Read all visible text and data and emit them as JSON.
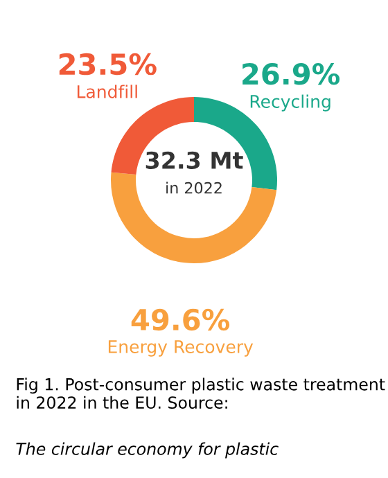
{
  "chart_data": {
    "type": "donut",
    "categories": [
      "Recycling",
      "Energy Recovery",
      "Landfill"
    ],
    "values": [
      26.9,
      49.6,
      23.5
    ],
    "value_labels": [
      "26.9%",
      "49.6%",
      "23.5%"
    ],
    "colors": [
      "#1aa88a",
      "#f8a03e",
      "#f05a38"
    ],
    "annotations": [
      "32.3 Mt",
      "in 2022",
      "Fig 1. Post-consumer plastic waste treatment in 2022 in the EU. Source:",
      "The circular economy for plastic"
    ],
    "legend": false
  }
}
